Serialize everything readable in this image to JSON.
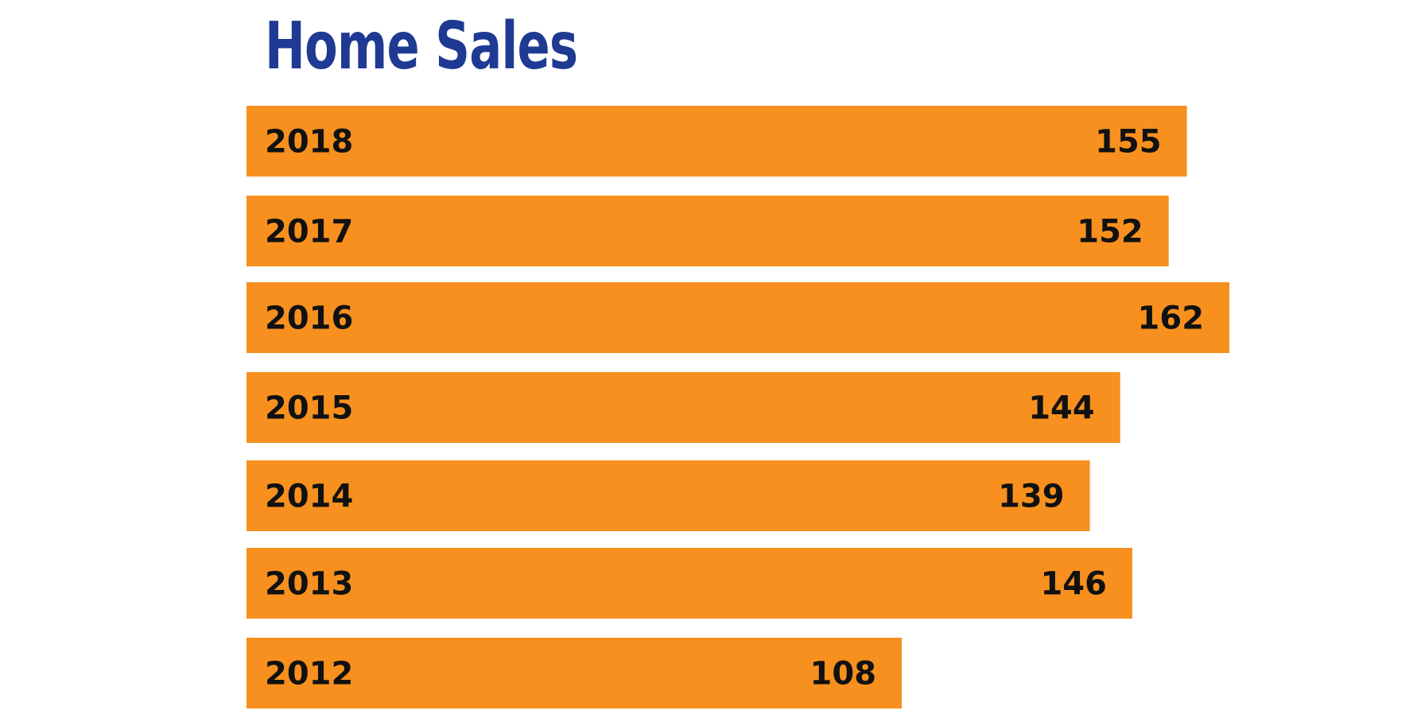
{
  "chart_data": {
    "type": "bar",
    "orientation": "horizontal",
    "title": "Home Sales",
    "categories": [
      "2018",
      "2017",
      "2016",
      "2015",
      "2014",
      "2013",
      "2012"
    ],
    "values": [
      155,
      152,
      162,
      144,
      139,
      146,
      108
    ],
    "xlabel": "",
    "ylabel": "",
    "grid": false,
    "legend": "none"
  },
  "colors": {
    "bar": "#F7901E",
    "title": "#1F3A93",
    "text": "#111111"
  }
}
